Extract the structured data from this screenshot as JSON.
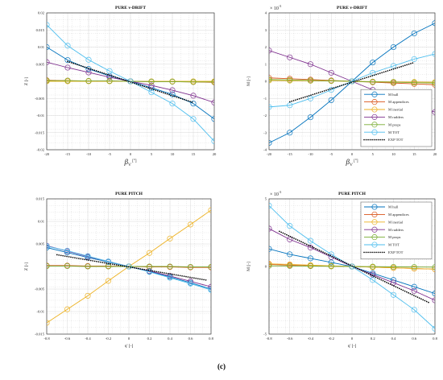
{
  "figure": {
    "caption": "(c)"
  },
  "chart_data": [
    {
      "type": "line",
      "title": "PURE v-DRIFT",
      "xlabel": "β",
      "xlabel_sub": "V",
      "xunit": "[°]",
      "ylabel": "Z [-]",
      "xlim": [
        -20,
        20
      ],
      "ylim": [
        -0.02,
        0.02
      ],
      "xticks": [
        -20,
        -15,
        -10,
        -5,
        0,
        5,
        10,
        15,
        20
      ],
      "xtick_labels": [
        "-20",
        "-15",
        "-10",
        "-5",
        "0",
        "5",
        "10",
        "15",
        "20"
      ],
      "yticks": [
        -0.02,
        -0.015,
        -0.01,
        -0.005,
        0,
        0.005,
        0.01,
        0.015,
        0.02
      ],
      "ytick_labels": [
        "-0.02",
        "-0.015",
        "-0.01",
        "-0.005",
        "",
        "0.005",
        "0.01",
        "0.015",
        "0.02"
      ],
      "x": [
        -20,
        -15,
        -10,
        -5,
        0,
        5,
        10,
        15,
        20
      ],
      "series": [
        {
          "color": "#0072bd",
          "values": [
            0.01,
            0.0062,
            0.0036,
            0.0016,
            0,
            -0.0019,
            -0.0038,
            -0.0065,
            -0.011
          ]
        },
        {
          "color": "#d95319",
          "values": [
            0.0003,
            0.0002,
            0.0001,
            0.0001,
            0,
            -0.0001,
            -0.0001,
            -0.0002,
            -0.0003
          ]
        },
        {
          "color": "#edb120",
          "values": [
            0.0,
            0.0,
            0.0,
            0.0,
            0,
            0.0,
            0.0,
            0.0,
            0.0
          ]
        },
        {
          "color": "#7e2f8e",
          "values": [
            0.0056,
            0.004,
            0.0026,
            0.0012,
            0,
            -0.0012,
            -0.0026,
            -0.0042,
            -0.0062
          ]
        },
        {
          "color": "#77ac30",
          "values": [
            0.0002,
            0.0002,
            0.0001,
            0.0001,
            0,
            -0.0001,
            -0.0001,
            -0.0002,
            -0.0002
          ]
        },
        {
          "color": "#4dbeee",
          "values": [
            0.0165,
            0.0104,
            0.0063,
            0.003,
            0,
            -0.0032,
            -0.0065,
            -0.011,
            -0.0175
          ]
        }
      ],
      "exp": {
        "color": "#000000",
        "x": [
          -15,
          15
        ],
        "y": [
          0.0058,
          -0.0062
        ]
      }
    },
    {
      "type": "line",
      "title": "PURE v-DRIFT",
      "xlabel": "β",
      "xlabel_sub": "V",
      "xunit": "[°]",
      "ylabel": "M [-]",
      "exponent_label": "× 10",
      "exponent_power": "-3",
      "xlim": [
        -20,
        20
      ],
      "ylim": [
        -4,
        4
      ],
      "xticks": [
        -20,
        -15,
        -10,
        -5,
        0,
        5,
        10,
        15,
        20
      ],
      "xtick_labels": [
        "-20",
        "-15",
        "-10",
        "-5",
        "0",
        "5",
        "10",
        "15",
        "20"
      ],
      "yticks": [
        -4,
        -3,
        -2,
        -1,
        0,
        1,
        2,
        3,
        4
      ],
      "ytick_labels": [
        "-4",
        "-3",
        "-2",
        "-1",
        "0",
        "1",
        "2",
        "3",
        "4"
      ],
      "x": [
        -20,
        -15,
        -10,
        -5,
        0,
        5,
        10,
        15,
        20
      ],
      "series": [
        {
          "color": "#0072bd",
          "values": [
            -3.6,
            -3.0,
            -2.1,
            -1.1,
            0,
            1.1,
            2.0,
            2.8,
            3.4
          ]
        },
        {
          "color": "#d95319",
          "values": [
            0.2,
            0.15,
            0.1,
            0.05,
            0,
            -0.05,
            -0.1,
            -0.15,
            -0.2
          ]
        },
        {
          "color": "#edb120",
          "values": [
            0.05,
            0.04,
            0.03,
            0.02,
            0,
            -0.02,
            -0.03,
            -0.04,
            -0.05
          ]
        },
        {
          "color": "#7e2f8e",
          "values": [
            1.8,
            1.4,
            1.0,
            0.5,
            0,
            -0.5,
            -1.0,
            -1.4,
            -1.8
          ]
        },
        {
          "color": "#77ac30",
          "values": [
            0.1,
            0.08,
            0.05,
            0.03,
            0,
            -0.03,
            -0.05,
            -0.08,
            -0.1
          ]
        },
        {
          "color": "#4dbeee",
          "values": [
            -1.5,
            -1.4,
            -1.0,
            -0.5,
            0,
            0.5,
            0.9,
            1.3,
            1.6
          ]
        }
      ],
      "exp": {
        "color": "#000000",
        "x": [
          -15,
          15
        ],
        "y": [
          -1.2,
          1.1
        ]
      },
      "legend": {
        "position": "bottom-right",
        "entries": [
          {
            "label": "M hull",
            "color": "#0072bd",
            "marker": "circle"
          },
          {
            "label": "M appendices",
            "color": "#d95319",
            "marker": "circle"
          },
          {
            "label": "M inertial",
            "color": "#edb120",
            "marker": "circle"
          },
          {
            "label": "M rudders",
            "color": "#7e2f8e",
            "marker": "circle"
          },
          {
            "label": "M props",
            "color": "#77ac30",
            "marker": "circle"
          },
          {
            "label": "M TOT",
            "color": "#4dbeee",
            "marker": "circle"
          },
          {
            "label": "EXP TOT",
            "color": "#000000",
            "marker": "dotted"
          }
        ]
      }
    },
    {
      "type": "line",
      "title": "PURE PITCH",
      "xlabel": "q' [-]",
      "ylabel": "Z [-]",
      "xlim": [
        -0.8,
        0.8
      ],
      "ylim": [
        -0.015,
        0.015
      ],
      "xticks": [
        -0.8,
        -0.6,
        -0.4,
        -0.2,
        0,
        0.2,
        0.4,
        0.6,
        0.8
      ],
      "xtick_labels": [
        "-0.8",
        "-0.6",
        "-0.4",
        "-0.2",
        "0",
        "0.2",
        "0.4",
        "0.6",
        "0.8"
      ],
      "yticks": [
        -0.015,
        -0.01,
        -0.005,
        0,
        0.005,
        0.01,
        0.015
      ],
      "ytick_labels": [
        "-0.015",
        "-0.01",
        "-0.005",
        "",
        "0.005",
        "0.01",
        "0.015"
      ],
      "x": [
        -0.8,
        -0.6,
        -0.4,
        -0.2,
        0,
        0.2,
        0.4,
        0.6,
        0.8
      ],
      "series": [
        {
          "color": "#0072bd",
          "values": [
            0.0042,
            0.0031,
            0.002,
            0.001,
            0,
            -0.0011,
            -0.0023,
            -0.0036,
            -0.005
          ]
        },
        {
          "color": "#d95319",
          "values": [
            0.0002,
            0.0002,
            0.0001,
            0.0001,
            0,
            -0.0001,
            -0.0001,
            -0.0002,
            -0.0002
          ]
        },
        {
          "color": "#edb120",
          "values": [
            -0.0125,
            -0.0095,
            -0.0065,
            -0.0032,
            0,
            0.003,
            0.0062,
            0.0093,
            0.0125
          ]
        },
        {
          "color": "#7e2f8e",
          "values": [
            0.0046,
            0.0034,
            0.0022,
            0.0011,
            0,
            -0.001,
            -0.0021,
            -0.0033,
            -0.0045
          ]
        },
        {
          "color": "#77ac30",
          "values": [
            0.0001,
            0.0001,
            0.0,
            0.0,
            0,
            0.0,
            0.0,
            -0.0001,
            -0.0001
          ]
        },
        {
          "color": "#4dbeee",
          "values": [
            0.0045,
            0.0035,
            0.0023,
            0.0011,
            0,
            -0.0012,
            -0.0025,
            -0.0038,
            -0.0052
          ]
        }
      ],
      "exp": {
        "color": "#000000",
        "x": [
          -0.7,
          0.75
        ],
        "y": [
          0.0026,
          -0.003
        ]
      }
    },
    {
      "type": "line",
      "title": "PURE PITCH",
      "xlabel": "q' [-]",
      "ylabel": "M [-]",
      "exponent_label": "× 10",
      "exponent_power": "-3",
      "xlim": [
        -0.8,
        0.8
      ],
      "ylim": [
        -5,
        5
      ],
      "xticks": [
        -0.8,
        -0.6,
        -0.4,
        -0.2,
        0,
        0.2,
        0.4,
        0.6,
        0.8
      ],
      "xtick_labels": [
        "-0.8",
        "-0.6",
        "-0.4",
        "-0.2",
        "0",
        "0.2",
        "0.4",
        "0.6",
        "0.8"
      ],
      "yticks": [
        -5,
        0,
        5
      ],
      "ytick_labels": [
        "-5",
        "0",
        "5"
      ],
      "x": [
        -0.8,
        -0.6,
        -0.4,
        -0.2,
        0,
        0.2,
        0.4,
        0.6,
        0.8
      ],
      "series": [
        {
          "color": "#0072bd",
          "values": [
            1.3,
            0.9,
            0.6,
            0.3,
            0,
            -0.5,
            -1.0,
            -1.5,
            -2.0
          ]
        },
        {
          "color": "#d95319",
          "values": [
            0.15,
            0.1,
            0.05,
            0.02,
            0,
            -0.05,
            -0.1,
            -0.15,
            -0.2
          ]
        },
        {
          "color": "#edb120",
          "values": [
            0.2,
            0.15,
            0.1,
            0.05,
            0,
            -0.05,
            -0.1,
            -0.15,
            -0.2
          ]
        },
        {
          "color": "#7e2f8e",
          "values": [
            2.8,
            2.0,
            1.4,
            0.7,
            0,
            -0.6,
            -1.2,
            -1.8,
            -2.5
          ]
        },
        {
          "color": "#77ac30",
          "values": [
            0.05,
            0.04,
            0.03,
            0.01,
            0,
            -0.01,
            -0.03,
            -0.04,
            -0.05
          ]
        },
        {
          "color": "#4dbeee",
          "values": [
            4.5,
            3.0,
            1.9,
            0.9,
            0,
            -1.0,
            -2.1,
            -3.2,
            -4.6
          ]
        }
      ],
      "exp": {
        "color": "#000000",
        "x": [
          -0.7,
          0.75
        ],
        "y": [
          2.6,
          -2.7
        ]
      },
      "legend": {
        "position": "top-right",
        "entries": [
          {
            "label": "M hull",
            "color": "#0072bd",
            "marker": "circle"
          },
          {
            "label": "M appendices",
            "color": "#d95319",
            "marker": "circle"
          },
          {
            "label": "M inertial",
            "color": "#edb120",
            "marker": "circle"
          },
          {
            "label": "M rudders",
            "color": "#7e2f8e",
            "marker": "circle"
          },
          {
            "label": "M props",
            "color": "#77ac30",
            "marker": "circle"
          },
          {
            "label": "M TOT",
            "color": "#4dbeee",
            "marker": "circle"
          },
          {
            "label": "EXP TOT",
            "color": "#000000",
            "marker": "dotted"
          }
        ]
      }
    }
  ]
}
